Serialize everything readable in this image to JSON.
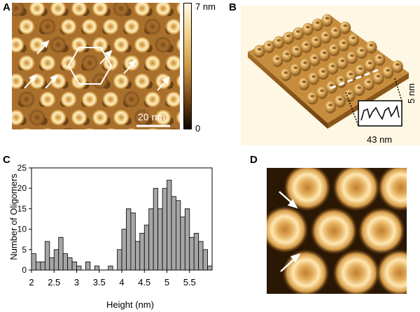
{
  "panels": {
    "a": {
      "label": "A",
      "scale_bar": "20 nm",
      "colorbar_top": "7 nm",
      "colorbar_bottom": "0"
    },
    "b": {
      "label": "B",
      "inset_height": "5 nm",
      "inset_width": "43 nm"
    },
    "c": {
      "label": "C"
    },
    "d": {
      "label": "D"
    }
  },
  "chart_data": {
    "type": "bar",
    "xlabel": "Height (nm)",
    "ylabel": "Number of Oligomers",
    "xlim": [
      2,
      6
    ],
    "ylim": [
      0,
      25
    ],
    "bin_width": 0.1,
    "x_ticks": [
      "2",
      "2.5",
      "3",
      "3.5",
      "4",
      "4.5",
      "5",
      "5.5"
    ],
    "x_tick_values": [
      2,
      2.5,
      3,
      3.5,
      4,
      4.5,
      5,
      5.5
    ],
    "y_ticks": [
      "0",
      "5",
      "10",
      "15",
      "20",
      "25"
    ],
    "y_tick_values": [
      0,
      5,
      10,
      15,
      20,
      25
    ],
    "bin_starts": [
      2.0,
      2.1,
      2.2,
      2.3,
      2.4,
      2.5,
      2.6,
      2.7,
      2.8,
      2.9,
      3.0,
      3.1,
      3.2,
      3.3,
      3.4,
      3.5,
      3.6,
      3.7,
      3.8,
      3.9,
      4.0,
      4.1,
      4.2,
      4.3,
      4.4,
      4.5,
      4.6,
      4.7,
      4.8,
      4.9,
      5.0,
      5.1,
      5.2,
      5.3,
      5.4,
      5.5,
      5.6,
      5.7,
      5.8,
      5.9
    ],
    "values": [
      4,
      2,
      2,
      7,
      3,
      5,
      8,
      4,
      3,
      2,
      1,
      0,
      2,
      0,
      1,
      0,
      0,
      1,
      0,
      5,
      10,
      15,
      14,
      7,
      9,
      11,
      15,
      20,
      15,
      20,
      22,
      18,
      17,
      13,
      15,
      8,
      9,
      7,
      5,
      1
    ]
  }
}
